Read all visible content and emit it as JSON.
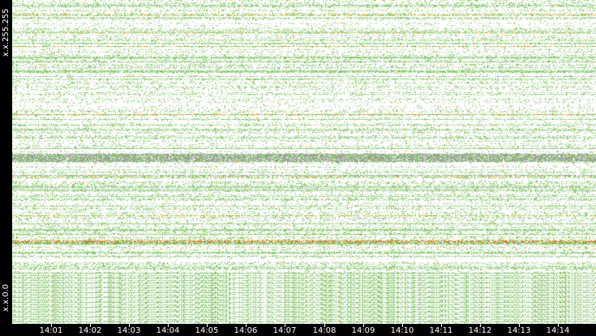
{
  "chart_data": {
    "type": "heatmap",
    "title": "",
    "xlabel": "",
    "ylabel": "",
    "x_ticks": [
      "14:01",
      "14:02",
      "14:03",
      "14:04",
      "14:05",
      "14:06",
      "14:07",
      "14:08",
      "14:09",
      "14:10",
      "14:11",
      "14:12",
      "14:13",
      "14:14"
    ],
    "y_ticks": [
      "x.x.0.0",
      "x.x.255.255"
    ],
    "y_order": "x.x.0.0 at bottom, x.x.255.255 at top",
    "color_scale": [
      "#9fd08f",
      "#66bb33",
      "#999999",
      "#ff9900",
      "#ff3300"
    ],
    "grid": false,
    "legend": "none"
  }
}
